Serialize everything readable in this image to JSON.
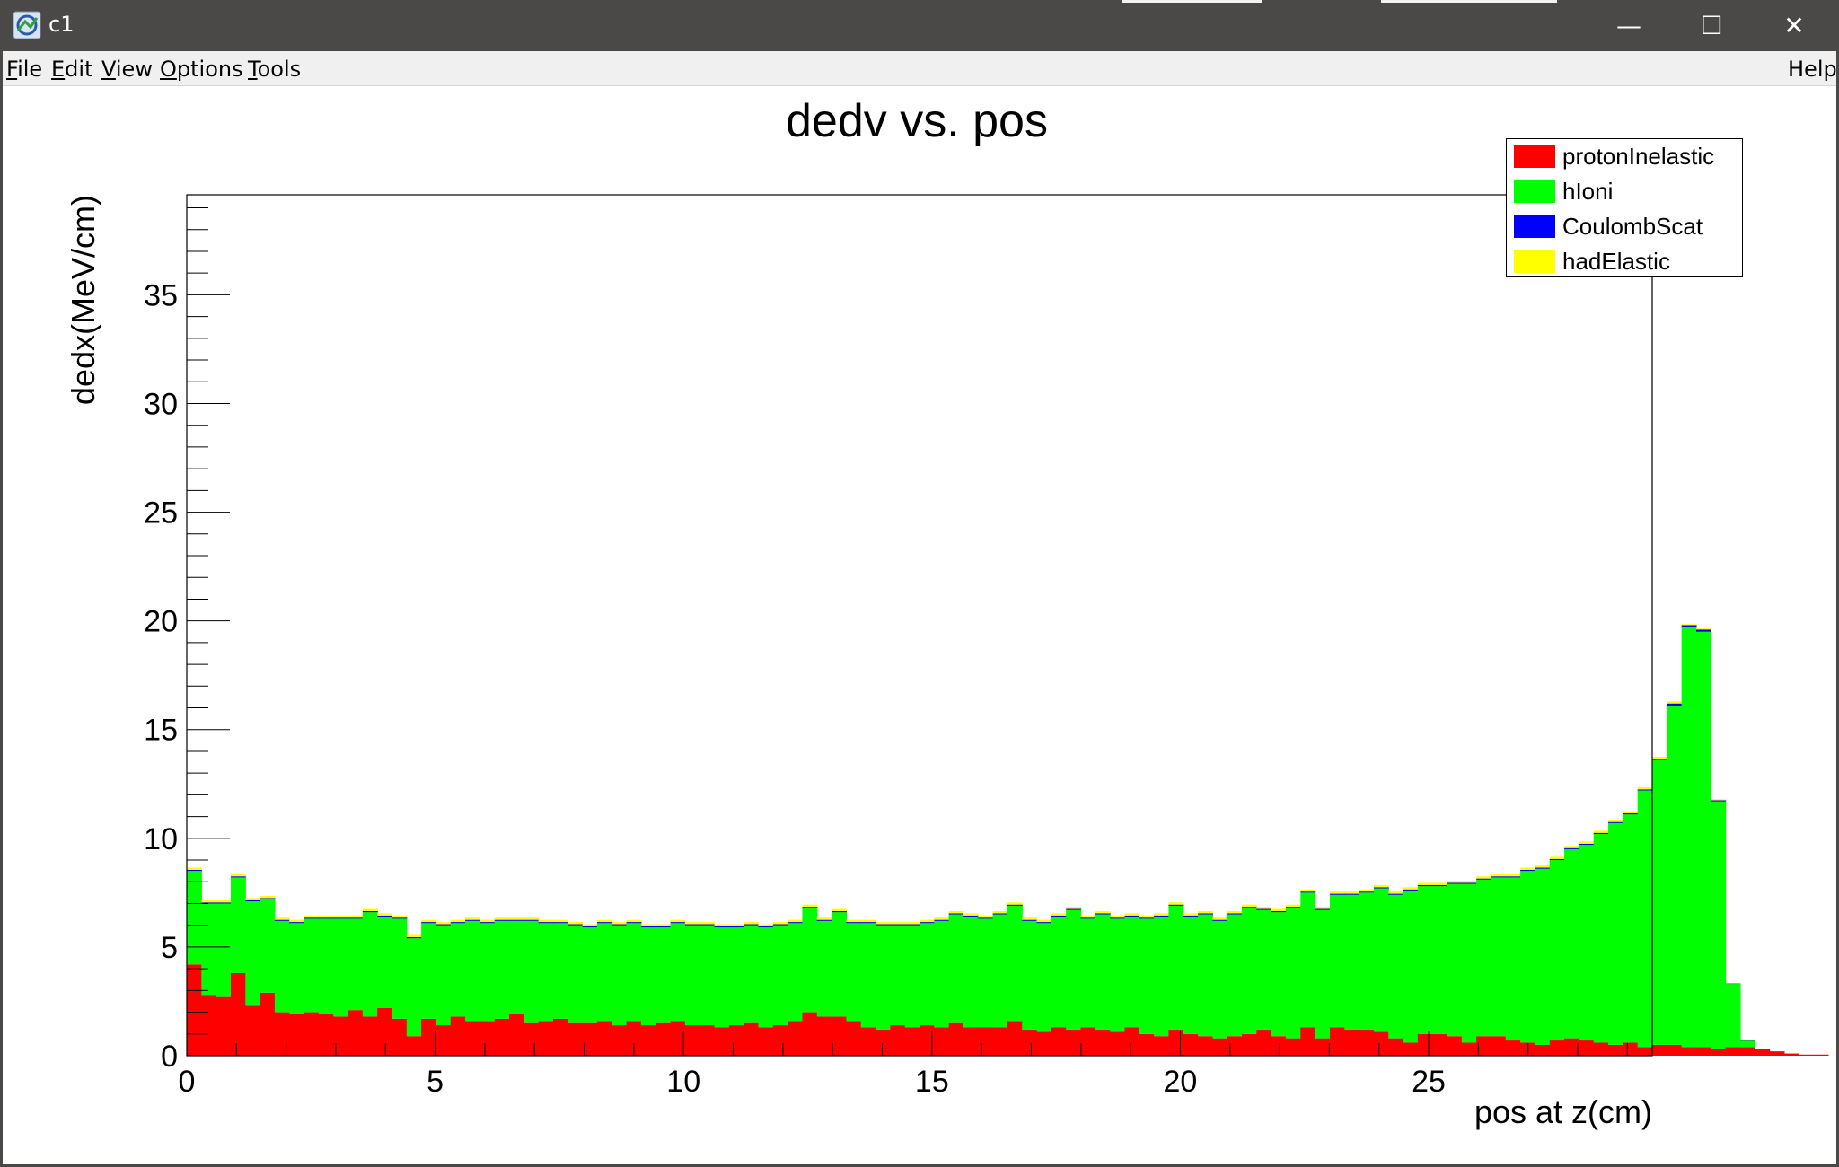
{
  "window": {
    "title": "c1",
    "controls": {
      "minimize": "—",
      "maximize": "☐",
      "close": "✕"
    }
  },
  "menu": {
    "items": [
      {
        "label": "File",
        "mnemonic": "F"
      },
      {
        "label": "Edit",
        "mnemonic": "E"
      },
      {
        "label": "View",
        "mnemonic": "V"
      },
      {
        "label": "Options",
        "mnemonic": "O"
      },
      {
        "label": "Tools",
        "mnemonic": "T"
      }
    ],
    "help": "Help"
  },
  "colors": {
    "protonInelastic": "#ff0000",
    "hIoni": "#00ff00",
    "CoulombScat": "#0000ff",
    "hadElastic": "#ffff00",
    "titlebar": "#4b4947"
  },
  "legend": {
    "placement": "top-right",
    "entries": [
      {
        "label": "protonInelastic",
        "color": "#ff0000"
      },
      {
        "label": "hIoni",
        "color": "#00ff00"
      },
      {
        "label": "CoulombScat",
        "color": "#0000ff"
      },
      {
        "label": "hadElastic",
        "color": "#ffff00"
      }
    ]
  },
  "chart_data": {
    "type": "bar",
    "subtype": "stacked-histogram",
    "title": "dedv vs. pos",
    "xlabel": "pos at z(cm)",
    "ylabel": "dedx(MeV/cm)",
    "xlim": [
      0,
      29.5
    ],
    "ylim": [
      0,
      39.6
    ],
    "x_ticks": [
      "0",
      "5",
      "10",
      "15",
      "20",
      "25"
    ],
    "y_ticks": [
      "0",
      "5",
      "10",
      "15",
      "20",
      "25",
      "30",
      "35"
    ],
    "bin_width": 0.295,
    "series": [
      {
        "name": "protonInelastic",
        "values": [
          4.2,
          2.8,
          2.7,
          3.8,
          2.3,
          2.9,
          2.0,
          1.9,
          2.0,
          1.9,
          1.8,
          2.1,
          1.8,
          2.2,
          1.7,
          0.9,
          1.7,
          1.4,
          1.8,
          1.6,
          1.6,
          1.7,
          1.9,
          1.5,
          1.6,
          1.7,
          1.5,
          1.5,
          1.6,
          1.4,
          1.6,
          1.4,
          1.5,
          1.6,
          1.4,
          1.4,
          1.3,
          1.4,
          1.5,
          1.3,
          1.4,
          1.6,
          2.0,
          1.8,
          1.8,
          1.6,
          1.3,
          1.2,
          1.4,
          1.3,
          1.4,
          1.3,
          1.5,
          1.3,
          1.3,
          1.3,
          1.6,
          1.2,
          1.1,
          1.3,
          1.2,
          1.3,
          1.2,
          1.1,
          1.3,
          1.0,
          0.9,
          1.2,
          1.0,
          0.9,
          0.8,
          0.9,
          1.0,
          1.2,
          0.9,
          0.8,
          1.3,
          0.8,
          1.3,
          1.2,
          1.2,
          1.1,
          0.8,
          0.6,
          1.0,
          1.0,
          0.9,
          0.6,
          0.9,
          0.9,
          0.7,
          0.6,
          0.5,
          0.7,
          0.8,
          0.7,
          0.6,
          0.5,
          0.6,
          0.4,
          0.5,
          0.5,
          0.4,
          0.4,
          0.3,
          0.4,
          0.4,
          0.3,
          0.2,
          0.1,
          0.05,
          0.05,
          0,
          0,
          0,
          0,
          0,
          0,
          0,
          0,
          0,
          0,
          0,
          0,
          0,
          0,
          0,
          0,
          0,
          0
        ]
      },
      {
        "name": "hIoni",
        "values": [
          4.3,
          4.2,
          4.3,
          4.4,
          4.8,
          4.3,
          4.2,
          4.2,
          4.3,
          4.4,
          4.5,
          4.2,
          4.8,
          4.2,
          4.6,
          4.5,
          4.4,
          4.6,
          4.3,
          4.6,
          4.5,
          4.5,
          4.3,
          4.7,
          4.5,
          4.4,
          4.5,
          4.4,
          4.5,
          4.6,
          4.5,
          4.5,
          4.4,
          4.5,
          4.6,
          4.6,
          4.6,
          4.5,
          4.5,
          4.6,
          4.6,
          4.5,
          4.8,
          4.4,
          4.8,
          4.5,
          4.8,
          4.8,
          4.6,
          4.7,
          4.7,
          4.9,
          5.0,
          5.1,
          5.0,
          5.2,
          5.3,
          5.0,
          5.0,
          5.1,
          5.5,
          5.0,
          5.3,
          5.2,
          5.1,
          5.3,
          5.5,
          5.7,
          5.4,
          5.6,
          5.4,
          5.6,
          5.8,
          5.5,
          5.7,
          6.0,
          6.2,
          5.9,
          6.1,
          6.2,
          6.3,
          6.6,
          6.6,
          7.0,
          6.8,
          6.8,
          7.0,
          7.3,
          7.2,
          7.3,
          7.5,
          7.9,
          8.1,
          8.3,
          8.7,
          9.0,
          9.6,
          10.2,
          10.5,
          11.8,
          13.1,
          15.6,
          19.3,
          19.1,
          11.4,
          2.9,
          0.3,
          0,
          0,
          0,
          0,
          0,
          0,
          0,
          0,
          0,
          0,
          0,
          0,
          0,
          0,
          0,
          0,
          0,
          0,
          0,
          0,
          0
        ]
      },
      {
        "name": "CoulombScat",
        "values": [
          0.05,
          0.05,
          0.05,
          0.05,
          0.05,
          0.05,
          0.05,
          0.05,
          0.05,
          0.05,
          0.05,
          0.05,
          0.05,
          0.05,
          0.05,
          0.05,
          0.05,
          0.05,
          0.05,
          0.05,
          0.05,
          0.05,
          0.05,
          0.05,
          0.05,
          0.05,
          0.05,
          0.05,
          0.05,
          0.05,
          0.05,
          0.05,
          0.05,
          0.05,
          0.05,
          0.05,
          0.05,
          0.05,
          0.05,
          0.05,
          0.05,
          0.05,
          0.05,
          0.05,
          0.05,
          0.05,
          0.05,
          0.05,
          0.05,
          0.05,
          0.05,
          0.05,
          0.05,
          0.05,
          0.05,
          0.05,
          0.05,
          0.05,
          0.05,
          0.05,
          0.05,
          0.05,
          0.05,
          0.05,
          0.05,
          0.05,
          0.05,
          0.05,
          0.05,
          0.05,
          0.05,
          0.05,
          0.05,
          0.05,
          0.05,
          0.05,
          0.05,
          0.05,
          0.05,
          0.05,
          0.05,
          0.05,
          0.05,
          0.05,
          0.05,
          0.05,
          0.05,
          0.05,
          0.05,
          0.05,
          0.05,
          0.05,
          0.05,
          0.05,
          0.05,
          0.05,
          0.05,
          0.05,
          0.05,
          0.05,
          0.05,
          0.1,
          0.1,
          0.1,
          0.05,
          0.02,
          0.01,
          0,
          0,
          0,
          0,
          0,
          0,
          0,
          0,
          0,
          0,
          0,
          0,
          0,
          0,
          0,
          0,
          0,
          0,
          0,
          0,
          0
        ]
      },
      {
        "name": "hadElastic",
        "values": [
          0.1,
          0.1,
          0.1,
          0.1,
          0.1,
          0.1,
          0.1,
          0.1,
          0.1,
          0.1,
          0.1,
          0.1,
          0.1,
          0.1,
          0.1,
          0.1,
          0.1,
          0.1,
          0.1,
          0.1,
          0.1,
          0.1,
          0.1,
          0.1,
          0.1,
          0.1,
          0.1,
          0.1,
          0.1,
          0.1,
          0.1,
          0.1,
          0.1,
          0.1,
          0.1,
          0.1,
          0.1,
          0.1,
          0.1,
          0.1,
          0.1,
          0.1,
          0.1,
          0.1,
          0.1,
          0.1,
          0.1,
          0.1,
          0.1,
          0.1,
          0.1,
          0.1,
          0.1,
          0.1,
          0.1,
          0.1,
          0.1,
          0.1,
          0.1,
          0.1,
          0.1,
          0.1,
          0.1,
          0.1,
          0.1,
          0.1,
          0.1,
          0.1,
          0.1,
          0.1,
          0.1,
          0.1,
          0.1,
          0.1,
          0.1,
          0.1,
          0.1,
          0.1,
          0.1,
          0.1,
          0.1,
          0.1,
          0.1,
          0.1,
          0.1,
          0.1,
          0.1,
          0.1,
          0.1,
          0.1,
          0.1,
          0.1,
          0.1,
          0.1,
          0.1,
          0.1,
          0.1,
          0.1,
          0.1,
          0.1,
          0.1,
          0.1,
          0.05,
          0.05,
          0.05,
          0.02,
          0.01,
          0,
          0,
          0,
          0,
          0,
          0,
          0,
          0,
          0,
          0,
          0,
          0,
          0,
          0,
          0,
          0,
          0,
          0,
          0,
          0,
          0
        ]
      }
    ]
  }
}
